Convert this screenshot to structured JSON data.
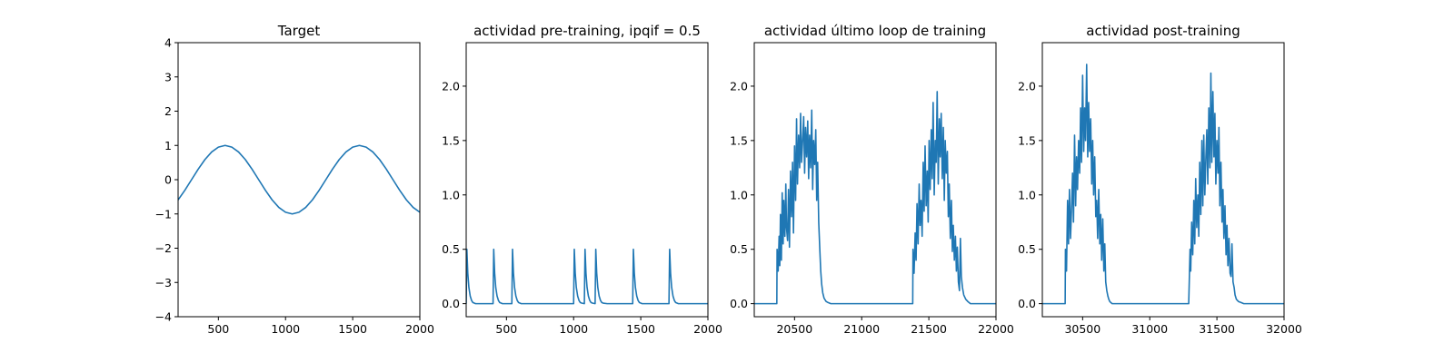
{
  "colors": {
    "series": "#1f77b4",
    "axes": "#000000",
    "background": "#ffffff"
  },
  "chart_data": [
    {
      "type": "line",
      "title": "Target",
      "xlabel": "",
      "ylabel": "",
      "xlim": [
        200,
        2000
      ],
      "ylim": [
        -4,
        4
      ],
      "xticks": [
        500,
        1000,
        1500,
        2000
      ],
      "yticks": [
        -4,
        -3,
        -2,
        -1,
        0,
        1,
        2,
        3,
        4
      ],
      "grid": false,
      "series": [
        {
          "x": [
            200,
            250,
            300,
            350,
            400,
            450,
            500,
            550,
            600,
            650,
            700,
            750,
            800,
            850,
            900,
            950,
            1000,
            1050,
            1100,
            1150,
            1200,
            1250,
            1300,
            1350,
            1400,
            1450,
            1500,
            1550,
            1600,
            1650,
            1700,
            1750,
            1800,
            1850,
            1900,
            1950,
            2000
          ],
          "y": [
            -0.59,
            -0.31,
            0,
            0.31,
            0.59,
            0.81,
            0.95,
            1,
            0.95,
            0.81,
            0.59,
            0.31,
            0,
            -0.31,
            -0.59,
            -0.81,
            -0.95,
            -1,
            -0.95,
            -0.81,
            -0.59,
            -0.31,
            0,
            0.31,
            0.59,
            0.81,
            0.95,
            1,
            0.95,
            0.81,
            0.59,
            0.31,
            0,
            -0.31,
            -0.59,
            -0.81,
            -0.95
          ]
        }
      ]
    },
    {
      "type": "line",
      "title": "actividad pre-training, ipqif = 0.5",
      "xlabel": "",
      "ylabel": "",
      "xlim": [
        200,
        2000
      ],
      "ylim": [
        -0.12,
        2.4
      ],
      "xticks": [
        500,
        1000,
        1500,
        2000
      ],
      "yticks": [
        0.0,
        0.5,
        1.0,
        1.5,
        2.0
      ],
      "ytick_labels": [
        "0.0",
        "0.5",
        "1.0",
        "1.5",
        "2.0"
      ],
      "grid": false,
      "series": [
        {
          "x": [
            200,
            205,
            212,
            220,
            230,
            240,
            250,
            270,
            300,
            350,
            400,
            405,
            412,
            420,
            430,
            440,
            450,
            470,
            500,
            520,
            540,
            545,
            552,
            560,
            570,
            580,
            590,
            610,
            650,
            700,
            800,
            900,
            1000,
            1005,
            1012,
            1020,
            1030,
            1040,
            1050,
            1060,
            1080,
            1085,
            1092,
            1100,
            1110,
            1120,
            1130,
            1140,
            1160,
            1165,
            1172,
            1180,
            1190,
            1200,
            1210,
            1220,
            1250,
            1300,
            1400,
            1440,
            1445,
            1452,
            1460,
            1470,
            1480,
            1490,
            1510,
            1550,
            1600,
            1700,
            1710,
            1715,
            1722,
            1730,
            1740,
            1750,
            1760,
            1780,
            1800,
            1900,
            2000
          ],
          "y": [
            0,
            0.5,
            0.28,
            0.15,
            0.07,
            0.03,
            0.01,
            0,
            0,
            0,
            0,
            0.5,
            0.28,
            0.15,
            0.07,
            0.03,
            0.01,
            0,
            0,
            0,
            0,
            0.5,
            0.28,
            0.15,
            0.07,
            0.03,
            0.01,
            0,
            0,
            0,
            0,
            0,
            0,
            0.5,
            0.28,
            0.15,
            0.07,
            0.03,
            0.01,
            0.005,
            0,
            0.5,
            0.28,
            0.15,
            0.07,
            0.03,
            0.01,
            0.005,
            0,
            0.5,
            0.28,
            0.15,
            0.07,
            0.03,
            0.01,
            0.005,
            0,
            0,
            0,
            0,
            0.5,
            0.28,
            0.15,
            0.07,
            0.03,
            0.01,
            0,
            0,
            0,
            0,
            0,
            0.5,
            0.28,
            0.15,
            0.07,
            0.03,
            0.01,
            0,
            0,
            0,
            0
          ]
        }
      ]
    },
    {
      "type": "line",
      "title": "actividad último loop de training",
      "xlabel": "",
      "ylabel": "",
      "xlim": [
        20200,
        22000
      ],
      "ylim": [
        -0.12,
        2.4
      ],
      "xticks": [
        20500,
        21000,
        21500,
        22000
      ],
      "yticks": [
        0.0,
        0.5,
        1.0,
        1.5,
        2.0
      ],
      "ytick_labels": [
        "0.0",
        "0.5",
        "1.0",
        "1.5",
        "2.0"
      ],
      "grid": false,
      "series": [
        {
          "x": [
            20200,
            20300,
            20368,
            20370,
            20378,
            20385,
            20390,
            20395,
            20402,
            20408,
            20415,
            20420,
            20428,
            20435,
            20440,
            20448,
            20455,
            20462,
            20470,
            20478,
            20485,
            20492,
            20500,
            20508,
            20515,
            20522,
            20530,
            20538,
            20545,
            20552,
            20560,
            20568,
            20575,
            20582,
            20590,
            20598,
            20605,
            20612,
            20620,
            20628,
            20635,
            20642,
            20650,
            20658,
            20665,
            20672,
            20680,
            20688,
            20695,
            20702,
            20710,
            20720,
            20735,
            20750,
            20770,
            20800,
            20850,
            20900,
            21000,
            21100,
            21200,
            21300,
            21380,
            21382,
            21390,
            21398,
            21405,
            21412,
            21420,
            21428,
            21435,
            21442,
            21450,
            21458,
            21465,
            21472,
            21480,
            21488,
            21495,
            21502,
            21510,
            21518,
            21525,
            21532,
            21540,
            21548,
            21555,
            21562,
            21570,
            21578,
            21585,
            21592,
            21600,
            21608,
            21615,
            21622,
            21630,
            21638,
            21645,
            21652,
            21660,
            21668,
            21675,
            21682,
            21690,
            21698,
            21705,
            21712,
            21720,
            21728,
            21735,
            21742,
            21750,
            21760,
            21775,
            21790,
            21810,
            21840,
            21880,
            21950,
            22000
          ],
          "y": [
            0,
            0,
            0,
            0.5,
            0.3,
            0.62,
            0.35,
            0.82,
            0.4,
            1.02,
            0.55,
            0.95,
            0.62,
            1.1,
            0.7,
            0.58,
            1.05,
            0.52,
            1.22,
            0.8,
            1.3,
            0.65,
            1.45,
            0.95,
            1.7,
            1.1,
            1.55,
            1.25,
            1.75,
            1.3,
            1.5,
            1.72,
            1.2,
            1.62,
            1.35,
            1.68,
            1.15,
            1.55,
            1.25,
            1.78,
            1.05,
            1.5,
            1.28,
            1.6,
            0.95,
            1.3,
            0.75,
            0.5,
            0.3,
            0.18,
            0.1,
            0.05,
            0.02,
            0.01,
            0,
            0,
            0,
            0,
            0,
            0,
            0,
            0,
            0,
            0.5,
            0.28,
            0.65,
            0.4,
            0.92,
            0.55,
            1.1,
            0.72,
            0.95,
            0.62,
            1.3,
            0.85,
            1.45,
            0.9,
            1.22,
            0.75,
            1.5,
            1.05,
            1.6,
            1.15,
            1.85,
            1.0,
            1.5,
            1.3,
            1.95,
            1.1,
            1.7,
            1.35,
            1.75,
            1.15,
            1.62,
            0.95,
            1.5,
            1.2,
            1.4,
            0.8,
            1.1,
            0.6,
            0.95,
            0.48,
            0.72,
            0.4,
            0.62,
            0.3,
            0.52,
            0.2,
            0.12,
            0.6,
            0.25,
            0.15,
            0.08,
            0.04,
            0.02,
            0,
            0,
            0,
            0,
            0
          ]
        }
      ]
    },
    {
      "type": "line",
      "title": "actividad post-training",
      "xlabel": "",
      "ylabel": "",
      "xlim": [
        30200,
        32000
      ],
      "ylim": [
        -0.12,
        2.4
      ],
      "xticks": [
        30500,
        31000,
        31500,
        32000
      ],
      "yticks": [
        0.0,
        0.5,
        1.0,
        1.5,
        2.0
      ],
      "ytick_labels": [
        "0.0",
        "0.5",
        "1.0",
        "1.5",
        "2.0"
      ],
      "grid": false,
      "series": [
        {
          "x": [
            30200,
            30300,
            30370,
            30372,
            30380,
            30388,
            30395,
            30402,
            30410,
            30418,
            30425,
            30432,
            30440,
            30448,
            30455,
            30462,
            30470,
            30478,
            30485,
            30492,
            30500,
            30508,
            30515,
            30522,
            30530,
            30538,
            30545,
            30552,
            30560,
            30568,
            30575,
            30582,
            30590,
            30598,
            30605,
            30612,
            30620,
            30628,
            30635,
            30642,
            30650,
            30658,
            30665,
            30672,
            30680,
            30688,
            30695,
            30702,
            30710,
            30720,
            30735,
            30750,
            30780,
            30820,
            30900,
            31000,
            31100,
            31200,
            31290,
            31300,
            31305,
            31312,
            31320,
            31328,
            31335,
            31342,
            31350,
            31358,
            31365,
            31372,
            31380,
            31388,
            31395,
            31402,
            31410,
            31418,
            31425,
            31432,
            31440,
            31448,
            31455,
            31462,
            31470,
            31478,
            31485,
            31492,
            31500,
            31508,
            31515,
            31522,
            31530,
            31538,
            31545,
            31552,
            31560,
            31568,
            31575,
            31582,
            31590,
            31598,
            31605,
            31612,
            31620,
            31628,
            31635,
            31645,
            31660,
            31680,
            31700,
            31750,
            31800,
            31900,
            32000
          ],
          "y": [
            0,
            0,
            0,
            0.5,
            0.3,
            0.95,
            0.55,
            1.05,
            0.6,
            0.9,
            1.2,
            0.75,
            1.55,
            0.9,
            1.35,
            1.05,
            1.5,
            1.2,
            1.8,
            1.3,
            2.1,
            1.4,
            1.8,
            1.5,
            2.2,
            1.35,
            1.85,
            1.4,
            1.7,
            1.1,
            1.5,
            1.0,
            1.35,
            0.8,
            0.95,
            0.6,
            1.05,
            0.55,
            0.82,
            0.4,
            0.78,
            0.3,
            0.55,
            0.2,
            0.12,
            0.07,
            0.04,
            0.02,
            0.01,
            0,
            0,
            0,
            0,
            0,
            0,
            0,
            0,
            0,
            0,
            0.5,
            0.3,
            0.75,
            0.45,
            0.95,
            0.55,
            1.15,
            0.7,
            1.0,
            0.62,
            1.3,
            0.82,
            1.5,
            0.9,
            1.55,
            1.0,
            1.35,
            1.6,
            1.1,
            1.8,
            1.25,
            2.12,
            1.3,
            1.95,
            1.35,
            1.75,
            1.1,
            1.5,
            1.2,
            1.62,
            0.9,
            1.3,
            0.75,
            1.05,
            0.6,
            0.9,
            0.45,
            0.72,
            0.35,
            0.6,
            0.28,
            0.25,
            0.55,
            0.2,
            0.15,
            0.08,
            0.04,
            0.02,
            0.01,
            0,
            0,
            0,
            0,
            0
          ]
        }
      ]
    }
  ]
}
